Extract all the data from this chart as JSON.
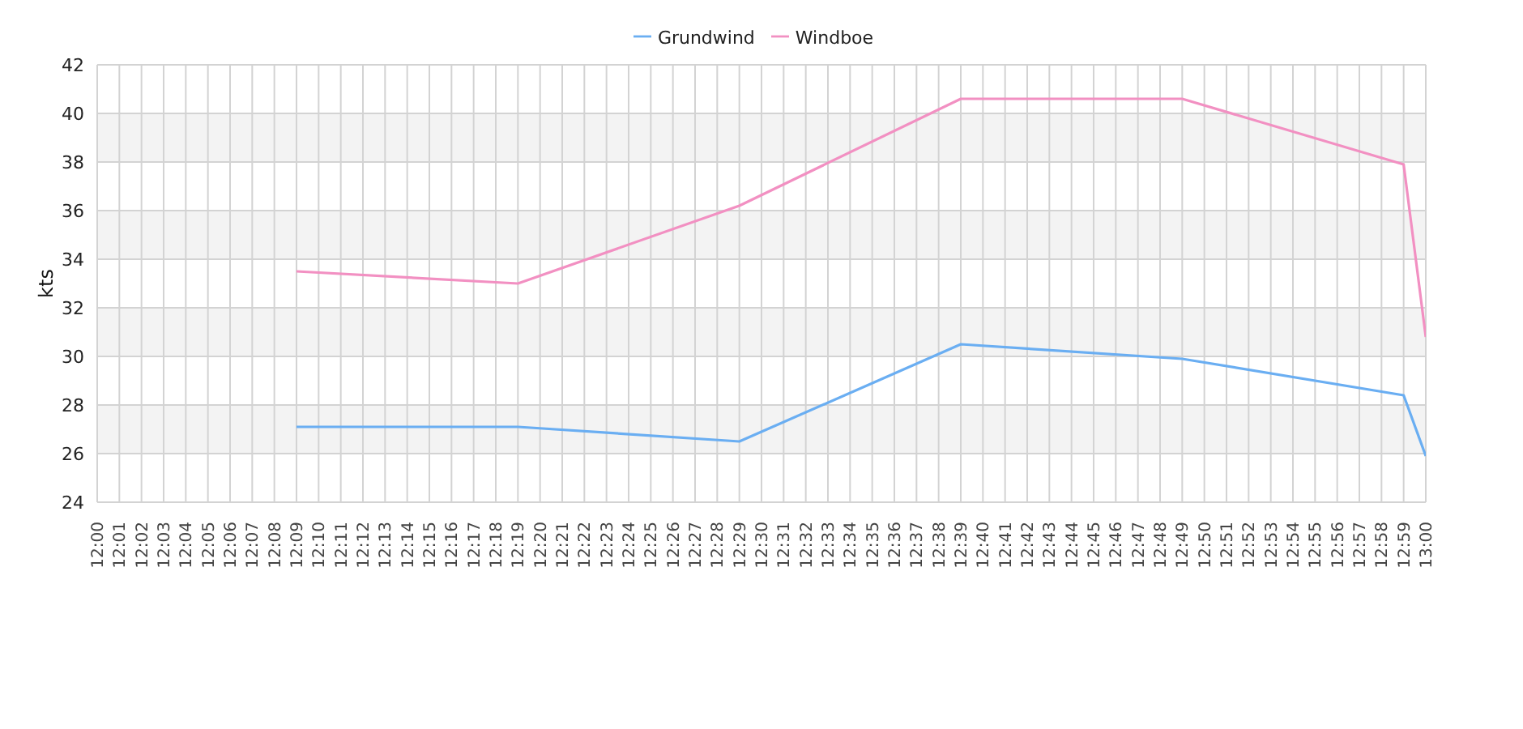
{
  "chart_data": {
    "type": "line",
    "ylabel": "kts",
    "x": [
      12.15,
      12.316667,
      12.483333,
      12.65,
      12.816667,
      12.983333,
      13
    ],
    "series": [
      {
        "name": "Grundwind",
        "color": "#6aaef2",
        "values": [
          27.1,
          27.1,
          26.5,
          30.5,
          29.9,
          28.4,
          25.9
        ]
      },
      {
        "name": "Windboe",
        "color": "#f290c2",
        "values": [
          33.5,
          33.0,
          36.2,
          40.6,
          40.6,
          37.9,
          30.8
        ]
      }
    ],
    "xlim": [
      12,
      13
    ],
    "xticks": [
      {
        "value": 12,
        "label": "12:00"
      },
      {
        "value": 12.016667,
        "label": "12:01"
      },
      {
        "value": 12.033333,
        "label": "12:02"
      },
      {
        "value": 12.05,
        "label": "12:03"
      },
      {
        "value": 12.066667,
        "label": "12:04"
      },
      {
        "value": 12.083333,
        "label": "12:05"
      },
      {
        "value": 12.1,
        "label": "12:06"
      },
      {
        "value": 12.116667,
        "label": "12:07"
      },
      {
        "value": 12.133333,
        "label": "12:08"
      },
      {
        "value": 12.15,
        "label": "12:09"
      },
      {
        "value": 12.166667,
        "label": "12:10"
      },
      {
        "value": 12.183333,
        "label": "12:11"
      },
      {
        "value": 12.2,
        "label": "12:12"
      },
      {
        "value": 12.216667,
        "label": "12:13"
      },
      {
        "value": 12.233333,
        "label": "12:14"
      },
      {
        "value": 12.25,
        "label": "12:15"
      },
      {
        "value": 12.266667,
        "label": "12:16"
      },
      {
        "value": 12.283333,
        "label": "12:17"
      },
      {
        "value": 12.3,
        "label": "12:18"
      },
      {
        "value": 12.316667,
        "label": "12:19"
      },
      {
        "value": 12.333333,
        "label": "12:20"
      },
      {
        "value": 12.35,
        "label": "12:21"
      },
      {
        "value": 12.366667,
        "label": "12:22"
      },
      {
        "value": 12.383333,
        "label": "12:23"
      },
      {
        "value": 12.4,
        "label": "12:24"
      },
      {
        "value": 12.416667,
        "label": "12:25"
      },
      {
        "value": 12.433333,
        "label": "12:26"
      },
      {
        "value": 12.45,
        "label": "12:27"
      },
      {
        "value": 12.466667,
        "label": "12:28"
      },
      {
        "value": 12.483333,
        "label": "12:29"
      },
      {
        "value": 12.5,
        "label": "12:30"
      },
      {
        "value": 12.516667,
        "label": "12:31"
      },
      {
        "value": 12.533333,
        "label": "12:32"
      },
      {
        "value": 12.55,
        "label": "12:33"
      },
      {
        "value": 12.566667,
        "label": "12:34"
      },
      {
        "value": 12.583333,
        "label": "12:35"
      },
      {
        "value": 12.6,
        "label": "12:36"
      },
      {
        "value": 12.616667,
        "label": "12:37"
      },
      {
        "value": 12.633333,
        "label": "12:38"
      },
      {
        "value": 12.65,
        "label": "12:39"
      },
      {
        "value": 12.666667,
        "label": "12:40"
      },
      {
        "value": 12.683333,
        "label": "12:41"
      },
      {
        "value": 12.7,
        "label": "12:42"
      },
      {
        "value": 12.716667,
        "label": "12:43"
      },
      {
        "value": 12.733333,
        "label": "12:44"
      },
      {
        "value": 12.75,
        "label": "12:45"
      },
      {
        "value": 12.766667,
        "label": "12:46"
      },
      {
        "value": 12.783333,
        "label": "12:47"
      },
      {
        "value": 12.8,
        "label": "12:48"
      },
      {
        "value": 12.816667,
        "label": "12:49"
      },
      {
        "value": 12.833333,
        "label": "12:50"
      },
      {
        "value": 12.85,
        "label": "12:51"
      },
      {
        "value": 12.866667,
        "label": "12:52"
      },
      {
        "value": 12.883333,
        "label": "12:53"
      },
      {
        "value": 12.9,
        "label": "12:54"
      },
      {
        "value": 12.916667,
        "label": "12:55"
      },
      {
        "value": 12.933333,
        "label": "12:56"
      },
      {
        "value": 12.95,
        "label": "12:57"
      },
      {
        "value": 12.966667,
        "label": "12:58"
      },
      {
        "value": 12.983333,
        "label": "12:59"
      },
      {
        "value": 13,
        "label": "13:00"
      }
    ],
    "ylim": [
      24,
      42
    ],
    "yticks": [
      24,
      26,
      28,
      30,
      32,
      34,
      36,
      38,
      40,
      42
    ],
    "grid": true,
    "legend": "top",
    "marker": "none"
  }
}
